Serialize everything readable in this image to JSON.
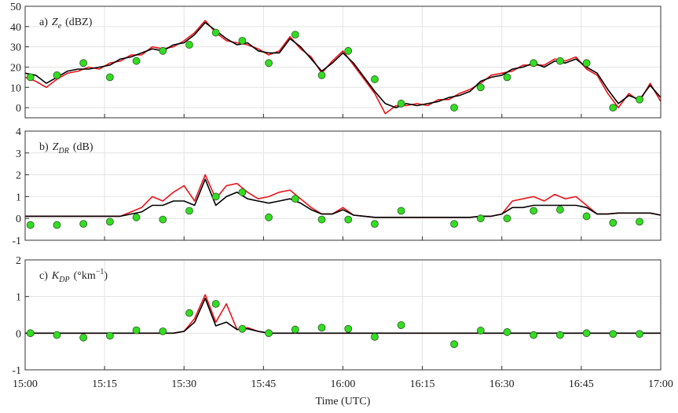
{
  "chart_data": [
    {
      "type": "line",
      "panel_label": "a)",
      "symbol": "Z",
      "subscript": "e",
      "unit": "(dBZ)",
      "xlim": [
        "15:00",
        "17:00"
      ],
      "xticks": [
        "15:00",
        "15:15",
        "15:30",
        "15:45",
        "16:00",
        "16:15",
        "16:30",
        "16:45",
        "17:00"
      ],
      "ylim": [
        -5,
        50
      ],
      "yticks": [
        0,
        10,
        20,
        30,
        40,
        50
      ],
      "grid": true,
      "x": [
        "15:00",
        "15:02",
        "15:04",
        "15:06",
        "15:08",
        "15:10",
        "15:12",
        "15:14",
        "15:16",
        "15:18",
        "15:20",
        "15:22",
        "15:24",
        "15:26",
        "15:28",
        "15:30",
        "15:32",
        "15:34",
        "15:36",
        "15:38",
        "15:40",
        "15:42",
        "15:44",
        "15:46",
        "15:48",
        "15:50",
        "15:52",
        "15:54",
        "15:56",
        "15:58",
        "16:00",
        "16:02",
        "16:04",
        "16:06",
        "16:08",
        "16:10",
        "16:12",
        "16:14",
        "16:16",
        "16:18",
        "16:20",
        "16:22",
        "16:24",
        "16:26",
        "16:28",
        "16:30",
        "16:32",
        "16:34",
        "16:36",
        "16:38",
        "16:40",
        "16:42",
        "16:44",
        "16:46",
        "16:48",
        "16:50",
        "16:52",
        "16:54",
        "16:56",
        "16:58",
        "17:00"
      ],
      "series": [
        {
          "mark": "line",
          "color": "#e8141b",
          "values": [
            15,
            13,
            10,
            14,
            17,
            18,
            20,
            19,
            22,
            23,
            26,
            26,
            30,
            29,
            30,
            33,
            37,
            43,
            37,
            33,
            32,
            31,
            29,
            26,
            28,
            35,
            29,
            25,
            17,
            23,
            28,
            21,
            14,
            7,
            -3,
            1,
            1,
            2,
            1,
            4,
            4,
            7,
            9,
            12,
            16,
            17,
            18,
            21,
            21,
            21,
            24,
            23,
            25,
            19,
            16,
            7,
            0,
            7,
            3,
            12,
            3
          ]
        },
        {
          "mark": "line",
          "color": "#000000",
          "values": [
            17,
            16,
            12,
            15,
            18,
            19,
            19,
            20,
            21,
            24,
            25,
            27,
            29,
            28,
            31,
            32,
            36,
            42,
            38,
            34,
            31,
            32,
            28,
            27,
            27,
            34,
            30,
            24,
            18,
            22,
            27,
            22,
            15,
            8,
            2,
            0,
            2,
            1,
            2,
            3,
            5,
            6,
            8,
            13,
            15,
            16,
            19,
            20,
            22,
            20,
            23,
            22,
            24,
            20,
            17,
            9,
            2,
            6,
            4,
            11,
            5
          ]
        },
        {
          "mark": "dot",
          "color": "#33dd22",
          "x": [
            "15:01",
            "15:06",
            "15:11",
            "15:16",
            "15:21",
            "15:26",
            "15:31",
            "15:36",
            "15:41",
            "15:46",
            "15:51",
            "15:56",
            "16:01",
            "16:06",
            "16:11",
            "16:21",
            "16:26",
            "16:31",
            "16:36",
            "16:41",
            "16:46",
            "16:51",
            "16:56"
          ],
          "values": [
            15,
            16,
            22,
            15,
            23,
            28,
            31,
            37,
            33,
            22,
            36,
            16,
            28,
            14,
            2,
            0,
            10,
            15,
            22,
            23,
            22,
            0,
            4
          ]
        }
      ]
    },
    {
      "type": "line",
      "panel_label": "b)",
      "symbol": "Z",
      "subscript": "DR",
      "unit": "(dB)",
      "xlim": [
        "15:00",
        "17:00"
      ],
      "xticks": [
        "15:00",
        "15:15",
        "15:30",
        "15:45",
        "16:00",
        "16:15",
        "16:30",
        "16:45",
        "17:00"
      ],
      "ylim": [
        -1,
        4
      ],
      "yticks": [
        -1,
        0,
        1,
        2,
        3,
        4
      ],
      "grid": true,
      "x": [
        "15:00",
        "15:02",
        "15:04",
        "15:06",
        "15:08",
        "15:10",
        "15:12",
        "15:14",
        "15:16",
        "15:18",
        "15:20",
        "15:22",
        "15:24",
        "15:26",
        "15:28",
        "15:30",
        "15:32",
        "15:34",
        "15:36",
        "15:38",
        "15:40",
        "15:42",
        "15:44",
        "15:46",
        "15:48",
        "15:50",
        "15:52",
        "15:54",
        "15:56",
        "15:58",
        "16:00",
        "16:02",
        "16:04",
        "16:06",
        "16:08",
        "16:10",
        "16:12",
        "16:14",
        "16:16",
        "16:18",
        "16:20",
        "16:22",
        "16:24",
        "16:26",
        "16:28",
        "16:30",
        "16:32",
        "16:34",
        "16:36",
        "16:38",
        "16:40",
        "16:42",
        "16:44",
        "16:46",
        "16:48",
        "16:50",
        "16:52",
        "16:54",
        "16:56",
        "16:58",
        "17:00"
      ],
      "series": [
        {
          "mark": "line",
          "color": "#e8141b",
          "values": [
            0.1,
            0.1,
            0.1,
            0.1,
            0.1,
            0.1,
            0.1,
            0.1,
            0.1,
            0.1,
            0.3,
            0.5,
            1.0,
            0.8,
            1.2,
            1.5,
            0.8,
            2.0,
            0.9,
            1.5,
            1.6,
            1.2,
            0.9,
            1.0,
            1.2,
            1.3,
            0.9,
            0.5,
            0.2,
            0.2,
            0.5,
            0.15,
            0.1,
            0.05,
            0.05,
            0.05,
            0.05,
            0.05,
            0.05,
            0.05,
            0.05,
            0.05,
            0.05,
            0.1,
            0.1,
            0.2,
            0.8,
            0.9,
            1.0,
            0.8,
            1.1,
            0.9,
            1.0,
            0.6,
            0.2,
            0.2,
            0.25,
            0.25,
            0.25,
            0.25,
            0.15
          ]
        },
        {
          "mark": "line",
          "color": "#000000",
          "values": [
            0.1,
            0.1,
            0.1,
            0.1,
            0.1,
            0.1,
            0.1,
            0.1,
            0.1,
            0.1,
            0.2,
            0.3,
            0.6,
            0.6,
            0.8,
            0.8,
            0.6,
            1.8,
            0.6,
            1.0,
            1.2,
            0.9,
            0.8,
            0.7,
            0.8,
            0.9,
            0.7,
            0.4,
            0.2,
            0.2,
            0.4,
            0.15,
            0.1,
            0.05,
            0.05,
            0.05,
            0.05,
            0.05,
            0.05,
            0.05,
            0.05,
            0.05,
            0.05,
            0.1,
            0.1,
            0.2,
            0.5,
            0.5,
            0.6,
            0.6,
            0.6,
            0.6,
            0.6,
            0.5,
            0.2,
            0.2,
            0.25,
            0.25,
            0.25,
            0.25,
            0.15
          ]
        },
        {
          "mark": "dot",
          "color": "#33dd22",
          "x": [
            "15:01",
            "15:06",
            "15:11",
            "15:16",
            "15:21",
            "15:26",
            "15:31",
            "15:36",
            "15:41",
            "15:46",
            "15:51",
            "15:56",
            "16:01",
            "16:06",
            "16:11",
            "16:21",
            "16:26",
            "16:31",
            "16:36",
            "16:41",
            "16:46",
            "16:51",
            "16:56"
          ],
          "values": [
            -0.3,
            -0.3,
            -0.25,
            -0.15,
            0.05,
            -0.05,
            0.35,
            1.0,
            1.2,
            0.05,
            0.9,
            -0.05,
            -0.05,
            -0.25,
            0.35,
            -0.25,
            0,
            0,
            0.35,
            0.4,
            0.1,
            -0.2,
            -0.15
          ]
        }
      ]
    },
    {
      "type": "line",
      "panel_label": "c)",
      "symbol": "K",
      "subscript": "DP",
      "unit": "(°km",
      "unit_superscript": "−1",
      "unit_close": ")",
      "xlabel": "Time (UTC)",
      "xlim": [
        "15:00",
        "17:00"
      ],
      "xticks": [
        "15:00",
        "15:15",
        "15:30",
        "15:45",
        "16:00",
        "16:15",
        "16:30",
        "16:45",
        "17:00"
      ],
      "ylim": [
        -1,
        2
      ],
      "yticks": [
        -1,
        0,
        1,
        2
      ],
      "grid": true,
      "x": [
        "15:00",
        "15:02",
        "15:04",
        "15:06",
        "15:08",
        "15:10",
        "15:12",
        "15:14",
        "15:16",
        "15:18",
        "15:20",
        "15:22",
        "15:24",
        "15:26",
        "15:28",
        "15:30",
        "15:32",
        "15:34",
        "15:36",
        "15:38",
        "15:40",
        "15:42",
        "15:44",
        "15:46",
        "15:48",
        "15:50",
        "15:52",
        "15:54",
        "15:56",
        "15:58",
        "16:00",
        "16:02",
        "16:04",
        "16:06",
        "16:08",
        "16:10",
        "16:12",
        "16:14",
        "16:16",
        "16:18",
        "16:20",
        "16:22",
        "16:24",
        "16:26",
        "16:28",
        "16:30",
        "16:32",
        "16:34",
        "16:36",
        "16:38",
        "16:40",
        "16:42",
        "16:44",
        "16:46",
        "16:48",
        "16:50",
        "16:52",
        "16:54",
        "16:56",
        "16:58",
        "17:00"
      ],
      "series": [
        {
          "mark": "line",
          "color": "#e8141b",
          "values": [
            0,
            0,
            0,
            0,
            0,
            0,
            0,
            0,
            0,
            0,
            0,
            0,
            0,
            0,
            0,
            0.05,
            0.4,
            1.05,
            0.3,
            0.8,
            0.1,
            0.15,
            0.05,
            0,
            0,
            0,
            0,
            0,
            0,
            0,
            0,
            0,
            0,
            0,
            0,
            0,
            0,
            0,
            0,
            0,
            0,
            0,
            0,
            0,
            0,
            0,
            0,
            0,
            0,
            0,
            0,
            0,
            0,
            0,
            0,
            0,
            0,
            0,
            0,
            0,
            0
          ]
        },
        {
          "mark": "line",
          "color": "#000000",
          "values": [
            0,
            0,
            0,
            0,
            0,
            0,
            0,
            0,
            0,
            0,
            0,
            0,
            0,
            0,
            0,
            0.05,
            0.3,
            0.95,
            0.2,
            0.3,
            0.1,
            0.12,
            0.05,
            0,
            0,
            0,
            0,
            0,
            0,
            0,
            0,
            0,
            0,
            0,
            0,
            0,
            0,
            0,
            0,
            0,
            0,
            0,
            0,
            0,
            0,
            0,
            0,
            0,
            0,
            0,
            0,
            0,
            0,
            0,
            0,
            0,
            0,
            0,
            0,
            0,
            0
          ]
        },
        {
          "mark": "dot",
          "color": "#33dd22",
          "x": [
            "15:01",
            "15:06",
            "15:11",
            "15:16",
            "15:21",
            "15:26",
            "15:31",
            "15:36",
            "15:41",
            "15:46",
            "15:51",
            "15:56",
            "16:01",
            "16:06",
            "16:11",
            "16:21",
            "16:26",
            "16:31",
            "16:36",
            "16:41",
            "16:46",
            "16:51",
            "16:56"
          ],
          "values": [
            0,
            -0.05,
            -0.12,
            -0.07,
            0.08,
            0.05,
            0.55,
            0.8,
            0.12,
            0,
            0.1,
            0.15,
            0.12,
            -0.1,
            0.22,
            -0.3,
            0.07,
            0.03,
            -0.05,
            -0.05,
            0,
            -0.02,
            -0.02
          ]
        }
      ]
    }
  ]
}
